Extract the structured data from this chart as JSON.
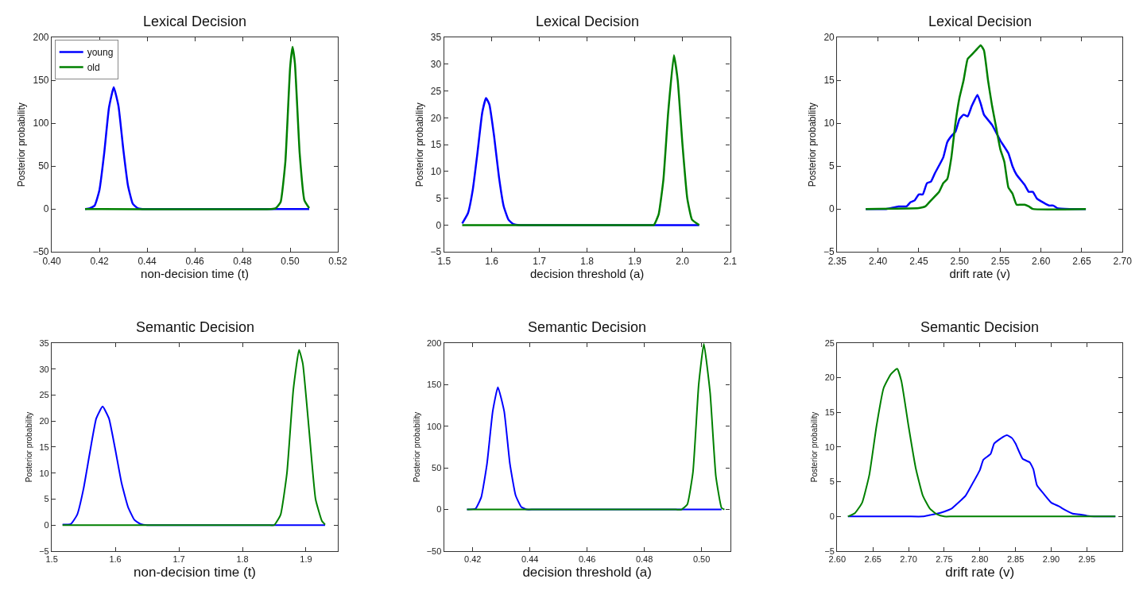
{
  "chart_data": [
    {
      "type": "line",
      "title": "Lexical Decision",
      "xlabel": "non-decision time (t)",
      "ylabel": "Posterior probability",
      "legend": "top left",
      "xlim": [
        0.4,
        0.52
      ],
      "xticks": [
        {
          "value": 0.4,
          "label": "0.40"
        },
        0.42,
        0.44,
        0.46,
        0.48,
        {
          "value": 0.5,
          "label": "0.50"
        },
        0.52
      ],
      "ylim": [
        -50,
        200
      ],
      "yticks": [
        -50,
        0,
        50,
        100,
        150,
        200
      ],
      "series": [
        {
          "name": "young",
          "color": "#0000ff",
          "x": [
            0.414,
            0.416,
            0.418,
            0.42,
            0.422,
            0.424,
            0.426,
            0.428,
            0.43,
            0.432,
            0.434,
            0.436,
            0.438,
            0.44,
            0.505,
            0.508
          ],
          "values": [
            0,
            1,
            4,
            22,
            65,
            118,
            142,
            120,
            70,
            27,
            6,
            1,
            0,
            0,
            0,
            0
          ]
        },
        {
          "name": "old",
          "color": "#008000",
          "x": [
            0.414,
            0.416,
            0.492,
            0.494,
            0.496,
            0.498,
            0.5,
            0.501,
            0.502,
            0.504,
            0.506,
            0.508
          ],
          "values": [
            0,
            0,
            0,
            1,
            8,
            55,
            165,
            189,
            170,
            65,
            10,
            1
          ]
        }
      ]
    },
    {
      "type": "line",
      "title": "Lexical Decision",
      "xlabel": "decision threshold (a)",
      "ylabel": "Posterior probability",
      "xlim": [
        1.5,
        2.1
      ],
      "xticks": [
        1.5,
        1.6,
        1.7,
        1.8,
        1.9,
        {
          "value": 2.0,
          "label": "2.0"
        },
        2.1
      ],
      "ylim": [
        -5,
        35
      ],
      "yticks": [
        -5,
        0,
        5,
        10,
        15,
        20,
        25,
        30,
        35
      ],
      "series": [
        {
          "color": "#0000ff",
          "x": [
            1.538,
            1.55,
            1.56,
            1.57,
            1.58,
            1.588,
            1.595,
            1.605,
            1.615,
            1.625,
            1.635,
            1.645,
            1.66,
            1.67,
            2.02,
            2.035
          ],
          "values": [
            0.3,
            2.2,
            6.5,
            13.5,
            21,
            23.7,
            22.5,
            16.5,
            9,
            3.5,
            1,
            0.2,
            0,
            0,
            0,
            0
          ]
        },
        {
          "color": "#008000",
          "x": [
            1.538,
            1.55,
            1.93,
            1.94,
            1.95,
            1.96,
            1.97,
            1.982,
            1.99,
            2.0,
            2.01,
            2.02,
            2.035
          ],
          "values": [
            0,
            0,
            0,
            0,
            2,
            8.5,
            21,
            31.7,
            27,
            15,
            5,
            1,
            0
          ]
        }
      ]
    },
    {
      "type": "line",
      "title": "Lexical Decision",
      "xlabel": "drift rate (v)",
      "ylabel": "Posterior probability",
      "xlim": [
        2.35,
        2.7
      ],
      "xticks": [
        2.35,
        {
          "value": 2.4,
          "label": "2.40"
        },
        2.45,
        {
          "value": 2.5,
          "label": "2.50"
        },
        2.55,
        {
          "value": 2.6,
          "label": "2.60"
        },
        2.65,
        {
          "value": 2.7,
          "label": "2.70"
        }
      ],
      "ylim": [
        -5,
        20
      ],
      "yticks": [
        -5,
        0,
        5,
        10,
        15,
        20
      ],
      "series": [
        {
          "color": "#0000ff",
          "x": [
            2.385,
            2.41,
            2.425,
            2.435,
            2.44,
            2.445,
            2.45,
            2.455,
            2.46,
            2.465,
            2.47,
            2.48,
            2.485,
            2.49,
            2.495,
            2.5,
            2.505,
            2.51,
            2.515,
            2.522,
            2.526,
            2.53,
            2.54,
            2.55,
            2.56,
            2.565,
            2.57,
            2.58,
            2.585,
            2.59,
            2.595,
            2.6,
            2.61,
            2.615,
            2.62,
            2.635,
            2.655
          ],
          "values": [
            0,
            0,
            0.3,
            0.3,
            0.8,
            1,
            1.7,
            1.7,
            3,
            3.2,
            4.2,
            6,
            7.8,
            8.5,
            9,
            10.5,
            11,
            10.8,
            12,
            13.3,
            12.3,
            11,
            9.8,
            8,
            6.5,
            5,
            4,
            2.8,
            2,
            2,
            1.2,
            0.9,
            0.4,
            0.4,
            0.1,
            0,
            0
          ]
        },
        {
          "color": "#008000",
          "x": [
            2.385,
            2.45,
            2.458,
            2.465,
            2.475,
            2.48,
            2.485,
            2.49,
            2.495,
            2.5,
            2.505,
            2.51,
            2.515,
            2.52,
            2.526,
            2.53,
            2.535,
            2.54,
            2.545,
            2.55,
            2.555,
            2.56,
            2.565,
            2.57,
            2.575,
            2.58,
            2.585,
            2.59,
            2.655
          ],
          "values": [
            0,
            0.1,
            0.3,
            1,
            2,
            3,
            3.5,
            6,
            10,
            13,
            15,
            17.5,
            18,
            18.5,
            19.1,
            18.5,
            15,
            12,
            9.5,
            7,
            5.5,
            2.5,
            1.8,
            0.5,
            0.5,
            0.5,
            0.3,
            0,
            0
          ]
        }
      ]
    },
    {
      "type": "line",
      "title": "Semantic Decision",
      "xlabel": "non-decision time (t)",
      "ylabel": "Posterior probability",
      "xlim": [
        1.5,
        1.95
      ],
      "xticks": [
        1.5,
        1.6,
        1.7,
        1.8,
        1.9
      ],
      "ylim": [
        -5,
        35
      ],
      "yticks": [
        -5,
        0,
        5,
        10,
        15,
        20,
        25,
        30,
        35
      ],
      "series": [
        {
          "color": "#0000ff",
          "x": [
            1.517,
            1.53,
            1.54,
            1.55,
            1.56,
            1.57,
            1.58,
            1.59,
            1.6,
            1.61,
            1.62,
            1.63,
            1.64,
            1.65,
            1.66,
            1.92,
            1.93
          ],
          "values": [
            0.1,
            0.2,
            2,
            7,
            14,
            20.5,
            22.8,
            20.5,
            14.5,
            8,
            3.5,
            1,
            0.2,
            0,
            0,
            0,
            0
          ]
        },
        {
          "color": "#008000",
          "x": [
            1.517,
            1.53,
            1.84,
            1.85,
            1.86,
            1.87,
            1.88,
            1.889,
            1.895,
            1.905,
            1.915,
            1.925,
            1.93
          ],
          "values": [
            0,
            0,
            0,
            0,
            2,
            10,
            26,
            33.7,
            31,
            18,
            5,
            0.8,
            0.1
          ]
        }
      ]
    },
    {
      "type": "line",
      "title": "Semantic Decision",
      "xlabel": "decision threshold (a)",
      "ylabel": "Posterior probability",
      "xlim": [
        0.41,
        0.51
      ],
      "xticks": [
        0.42,
        0.44,
        0.46,
        0.48,
        {
          "value": 0.5,
          "label": "0.50"
        }
      ],
      "ylim": [
        -50,
        200
      ],
      "yticks": [
        -50,
        0,
        50,
        100,
        150,
        200
      ],
      "series": [
        {
          "color": "#0000ff",
          "x": [
            0.418,
            0.421,
            0.423,
            0.425,
            0.427,
            0.4288,
            0.431,
            0.433,
            0.435,
            0.437,
            0.439,
            0.441,
            0.443,
            0.505,
            0.507
          ],
          "values": [
            0,
            1,
            15,
            55,
            118,
            147,
            118,
            55,
            17,
            3,
            0,
            0,
            0,
            0,
            0
          ]
        },
        {
          "color": "#008000",
          "x": [
            0.418,
            0.42,
            0.491,
            0.493,
            0.495,
            0.497,
            0.499,
            0.5008,
            0.503,
            0.505,
            0.507,
            0.508
          ],
          "values": [
            0,
            0,
            0,
            0,
            6,
            45,
            150,
            199,
            140,
            40,
            2,
            0
          ]
        }
      ]
    },
    {
      "type": "line",
      "title": "Semantic Decision",
      "xlabel": "drift rate (v)",
      "ylabel": "Posterior probability",
      "xlim": [
        2.6,
        3.0
      ],
      "xticks": [
        {
          "value": 2.6,
          "label": "2.60"
        },
        2.65,
        {
          "value": 2.7,
          "label": "2.70"
        },
        2.75,
        {
          "value": 2.8,
          "label": "2.80"
        },
        2.85,
        {
          "value": 2.9,
          "label": "2.90"
        },
        2.95
      ],
      "ylim": [
        -5,
        25
      ],
      "yticks": [
        -5,
        0,
        5,
        10,
        15,
        20,
        25
      ],
      "series": [
        {
          "color": "#0000ff",
          "x": [
            2.615,
            2.625,
            2.69,
            2.7,
            2.72,
            2.73,
            2.74,
            2.75,
            2.76,
            2.77,
            2.78,
            2.79,
            2.8,
            2.805,
            2.815,
            2.82,
            2.83,
            2.838,
            2.845,
            2.85,
            2.86,
            2.87,
            2.875,
            2.88,
            2.89,
            2.9,
            2.91,
            2.92,
            2.93,
            2.94,
            2.95,
            2.96,
            2.99
          ],
          "values": [
            0,
            0,
            0,
            0,
            0,
            0.2,
            0.4,
            0.7,
            1.1,
            2,
            3,
            4.8,
            6.7,
            8.2,
            9,
            10.5,
            11.3,
            11.7,
            11.3,
            10.5,
            8.3,
            7.8,
            6.8,
            4.5,
            3.2,
            2,
            1.5,
            0.9,
            0.4,
            0.3,
            0.1,
            0,
            0
          ]
        },
        {
          "color": "#008000",
          "x": [
            2.615,
            2.625,
            2.635,
            2.645,
            2.655,
            2.665,
            2.675,
            2.684,
            2.69,
            2.7,
            2.71,
            2.72,
            2.73,
            2.74,
            2.75,
            2.76,
            2.77,
            2.98,
            2.99
          ],
          "values": [
            0,
            0.5,
            2,
            6,
            13,
            18.5,
            20.5,
            21.3,
            19.5,
            13,
            7,
            3,
            1.1,
            0.3,
            0,
            0,
            0,
            0,
            0
          ]
        }
      ]
    }
  ]
}
